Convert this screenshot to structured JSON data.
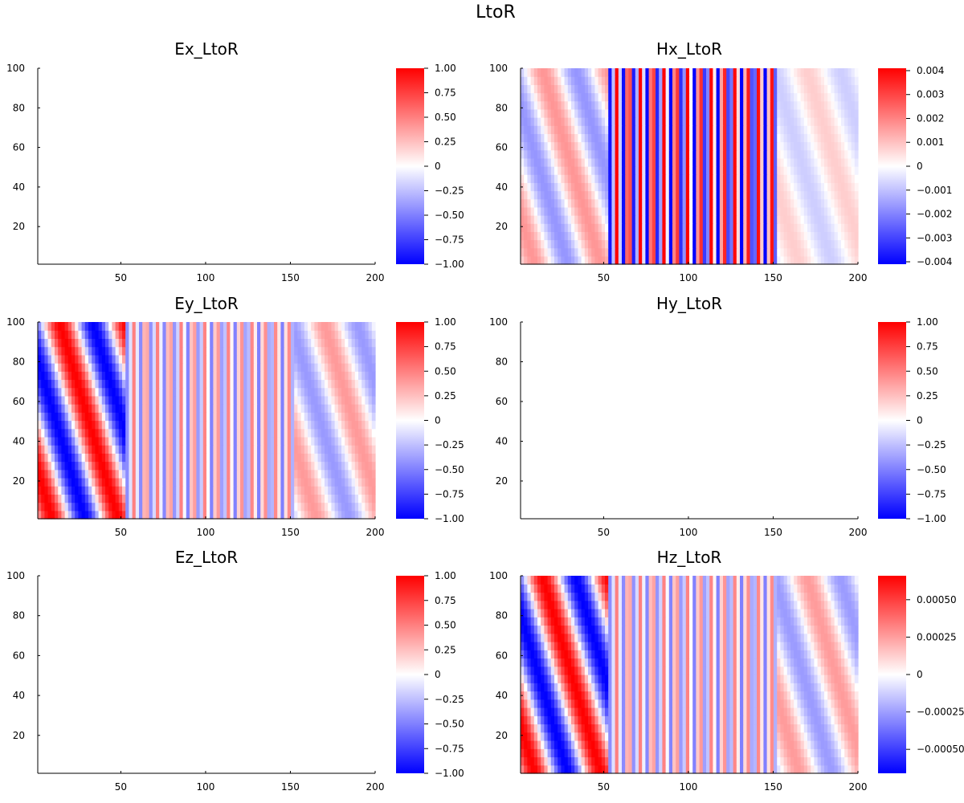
{
  "figure_title": "LtoR",
  "chart_data": [
    {
      "type": "heatmap",
      "title": "Ex_LtoR",
      "x_range": [
        1,
        200
      ],
      "y_range": [
        1,
        100
      ],
      "x_ticks": [
        {
          "v": 50,
          "label": "50"
        },
        {
          "v": 100,
          "label": "100"
        },
        {
          "v": 150,
          "label": "150"
        },
        {
          "v": 200,
          "label": "200"
        }
      ],
      "y_ticks": [
        {
          "v": 20,
          "label": "20"
        },
        {
          "v": 40,
          "label": "40"
        },
        {
          "v": 60,
          "label": "60"
        },
        {
          "v": 80,
          "label": "80"
        },
        {
          "v": 100,
          "label": "100"
        }
      ],
      "clim": [
        -1.0,
        1.0
      ],
      "colorbar_ticks": [
        {
          "v": 1,
          "label": "1.00"
        },
        {
          "v": 0.75,
          "label": "0.75"
        },
        {
          "v": 0.5,
          "label": "0.50"
        },
        {
          "v": 0.25,
          "label": "0.25"
        },
        {
          "v": 0,
          "label": "0"
        },
        {
          "v": -0.25,
          "label": "−0.25"
        },
        {
          "v": -0.5,
          "label": "−0.50"
        },
        {
          "v": -0.75,
          "label": "−0.75"
        },
        {
          "v": -1,
          "label": "−1.00"
        }
      ],
      "colormap": [
        "#0000ff",
        "#ffffff",
        "#ff0000"
      ],
      "field_amplitude": 0,
      "field_pattern": "uniform zero field"
    },
    {
      "type": "heatmap",
      "title": "Hx_LtoR",
      "x_range": [
        1,
        200
      ],
      "y_range": [
        1,
        100
      ],
      "x_ticks": [
        {
          "v": 50,
          "label": "50"
        },
        {
          "v": 100,
          "label": "100"
        },
        {
          "v": 150,
          "label": "150"
        },
        {
          "v": 200,
          "label": "200"
        }
      ],
      "y_ticks": [
        {
          "v": 20,
          "label": "20"
        },
        {
          "v": 40,
          "label": "40"
        },
        {
          "v": 60,
          "label": "60"
        },
        {
          "v": 80,
          "label": "80"
        },
        {
          "v": 100,
          "label": "100"
        }
      ],
      "clim": [
        -0.0041,
        0.0041
      ],
      "colorbar_ticks": [
        {
          "v": 0.004,
          "label": "0.004"
        },
        {
          "v": 0.003,
          "label": "0.003"
        },
        {
          "v": 0.002,
          "label": "0.002"
        },
        {
          "v": 0.001,
          "label": "0.001"
        },
        {
          "v": 0,
          "label": "0"
        },
        {
          "v": -0.001,
          "label": "−0.001"
        },
        {
          "v": -0.002,
          "label": "−0.002"
        },
        {
          "v": -0.003,
          "label": "−0.003"
        },
        {
          "v": -0.004,
          "label": "−0.004"
        }
      ],
      "colormap": [
        "#0000ff",
        "#ffffff",
        "#ff0000"
      ],
      "field_pattern": "slanted plane wave, strong oscillating region between x=52 and x=152",
      "regions": [
        {
          "x_from": 1,
          "x_to": 52,
          "amplitude": 0.0017,
          "wavelength": 39,
          "tilt": 0.35
        },
        {
          "x_from": 52,
          "x_to": 152,
          "amplitude": 0.0042,
          "wavelength": 7,
          "tilt": 0
        },
        {
          "x_from": 152,
          "x_to": 200,
          "amplitude": 0.0008,
          "wavelength": 39,
          "tilt": 0.35
        }
      ]
    },
    {
      "type": "heatmap",
      "title": "Ey_LtoR",
      "x_range": [
        1,
        200
      ],
      "y_range": [
        1,
        100
      ],
      "x_ticks": [
        {
          "v": 50,
          "label": "50"
        },
        {
          "v": 100,
          "label": "100"
        },
        {
          "v": 150,
          "label": "150"
        },
        {
          "v": 200,
          "label": "200"
        }
      ],
      "y_ticks": [
        {
          "v": 20,
          "label": "20"
        },
        {
          "v": 40,
          "label": "40"
        },
        {
          "v": 60,
          "label": "60"
        },
        {
          "v": 80,
          "label": "80"
        },
        {
          "v": 100,
          "label": "100"
        }
      ],
      "clim": [
        -1.0,
        1.0
      ],
      "colorbar_ticks": [
        {
          "v": 1,
          "label": "1.00"
        },
        {
          "v": 0.75,
          "label": "0.75"
        },
        {
          "v": 0.5,
          "label": "0.50"
        },
        {
          "v": 0.25,
          "label": "0.25"
        },
        {
          "v": 0,
          "label": "0"
        },
        {
          "v": -0.25,
          "label": "−0.25"
        },
        {
          "v": -0.5,
          "label": "−0.50"
        },
        {
          "v": -0.75,
          "label": "−0.75"
        },
        {
          "v": -1,
          "label": "−1.00"
        }
      ],
      "colormap": [
        "#0000ff",
        "#ffffff",
        "#ff0000"
      ],
      "field_pattern": "slanted plane wave with weaker striped region between x=52 and x=152",
      "regions": [
        {
          "x_from": 1,
          "x_to": 52,
          "amplitude": 1.0,
          "wavelength": 39,
          "tilt": 0.35
        },
        {
          "x_from": 52,
          "x_to": 152,
          "amplitude": 0.5,
          "wavelength": 7,
          "tilt": 0
        },
        {
          "x_from": 152,
          "x_to": 200,
          "amplitude": 0.4,
          "wavelength": 39,
          "tilt": 0.35
        }
      ]
    },
    {
      "type": "heatmap",
      "title": "Hy_LtoR",
      "x_range": [
        1,
        200
      ],
      "y_range": [
        1,
        100
      ],
      "x_ticks": [
        {
          "v": 50,
          "label": "50"
        },
        {
          "v": 100,
          "label": "100"
        },
        {
          "v": 150,
          "label": "150"
        },
        {
          "v": 200,
          "label": "200"
        }
      ],
      "y_ticks": [
        {
          "v": 20,
          "label": "20"
        },
        {
          "v": 40,
          "label": "40"
        },
        {
          "v": 60,
          "label": "60"
        },
        {
          "v": 80,
          "label": "80"
        },
        {
          "v": 100,
          "label": "100"
        }
      ],
      "clim": [
        -1.0,
        1.0
      ],
      "colorbar_ticks": [
        {
          "v": 1,
          "label": "1.00"
        },
        {
          "v": 0.75,
          "label": "0.75"
        },
        {
          "v": 0.5,
          "label": "0.50"
        },
        {
          "v": 0.25,
          "label": "0.25"
        },
        {
          "v": 0,
          "label": "0"
        },
        {
          "v": -0.25,
          "label": "−0.25"
        },
        {
          "v": -0.5,
          "label": "−0.50"
        },
        {
          "v": -0.75,
          "label": "−0.75"
        },
        {
          "v": -1,
          "label": "−1.00"
        }
      ],
      "colormap": [
        "#0000ff",
        "#ffffff",
        "#ff0000"
      ],
      "field_amplitude": 0,
      "field_pattern": "uniform zero field"
    },
    {
      "type": "heatmap",
      "title": "Ez_LtoR",
      "x_range": [
        1,
        200
      ],
      "y_range": [
        1,
        100
      ],
      "x_ticks": [
        {
          "v": 50,
          "label": "50"
        },
        {
          "v": 100,
          "label": "100"
        },
        {
          "v": 150,
          "label": "150"
        },
        {
          "v": 200,
          "label": "200"
        }
      ],
      "y_ticks": [
        {
          "v": 20,
          "label": "20"
        },
        {
          "v": 40,
          "label": "40"
        },
        {
          "v": 60,
          "label": "60"
        },
        {
          "v": 80,
          "label": "80"
        },
        {
          "v": 100,
          "label": "100"
        }
      ],
      "clim": [
        -1.0,
        1.0
      ],
      "colorbar_ticks": [
        {
          "v": 1,
          "label": "1.00"
        },
        {
          "v": 0.75,
          "label": "0.75"
        },
        {
          "v": 0.5,
          "label": "0.50"
        },
        {
          "v": 0.25,
          "label": "0.25"
        },
        {
          "v": 0,
          "label": "0"
        },
        {
          "v": -0.25,
          "label": "−0.25"
        },
        {
          "v": -0.5,
          "label": "−0.50"
        },
        {
          "v": -0.75,
          "label": "−0.75"
        },
        {
          "v": -1,
          "label": "−1.00"
        }
      ],
      "colormap": [
        "#0000ff",
        "#ffffff",
        "#ff0000"
      ],
      "field_amplitude": 0,
      "field_pattern": "uniform zero field"
    },
    {
      "type": "heatmap",
      "title": "Hz_LtoR",
      "x_range": [
        1,
        200
      ],
      "y_range": [
        1,
        100
      ],
      "x_ticks": [
        {
          "v": 50,
          "label": "50"
        },
        {
          "v": 100,
          "label": "100"
        },
        {
          "v": 150,
          "label": "150"
        },
        {
          "v": 200,
          "label": "200"
        }
      ],
      "y_ticks": [
        {
          "v": 20,
          "label": "20"
        },
        {
          "v": 40,
          "label": "40"
        },
        {
          "v": 60,
          "label": "60"
        },
        {
          "v": 80,
          "label": "80"
        },
        {
          "v": 100,
          "label": "100"
        }
      ],
      "clim": [
        -0.00066,
        0.00066
      ],
      "colorbar_ticks": [
        {
          "v": 0.0005,
          "label": "0.00050"
        },
        {
          "v": 0.00025,
          "label": "0.00025"
        },
        {
          "v": 0,
          "label": "0"
        },
        {
          "v": -0.00025,
          "label": "−0.00025"
        },
        {
          "v": -0.0005,
          "label": "−0.00050"
        }
      ],
      "colormap": [
        "#0000ff",
        "#ffffff",
        "#ff0000"
      ],
      "field_pattern": "slanted plane wave with weaker striped region between x=52 and x=152",
      "regions": [
        {
          "x_from": 1,
          "x_to": 52,
          "amplitude": 0.00066,
          "wavelength": 39,
          "tilt": 0.35
        },
        {
          "x_from": 52,
          "x_to": 152,
          "amplitude": 0.00033,
          "wavelength": 7,
          "tilt": 0
        },
        {
          "x_from": 152,
          "x_to": 200,
          "amplitude": 0.00026,
          "wavelength": 39,
          "tilt": 0.35
        }
      ]
    }
  ]
}
